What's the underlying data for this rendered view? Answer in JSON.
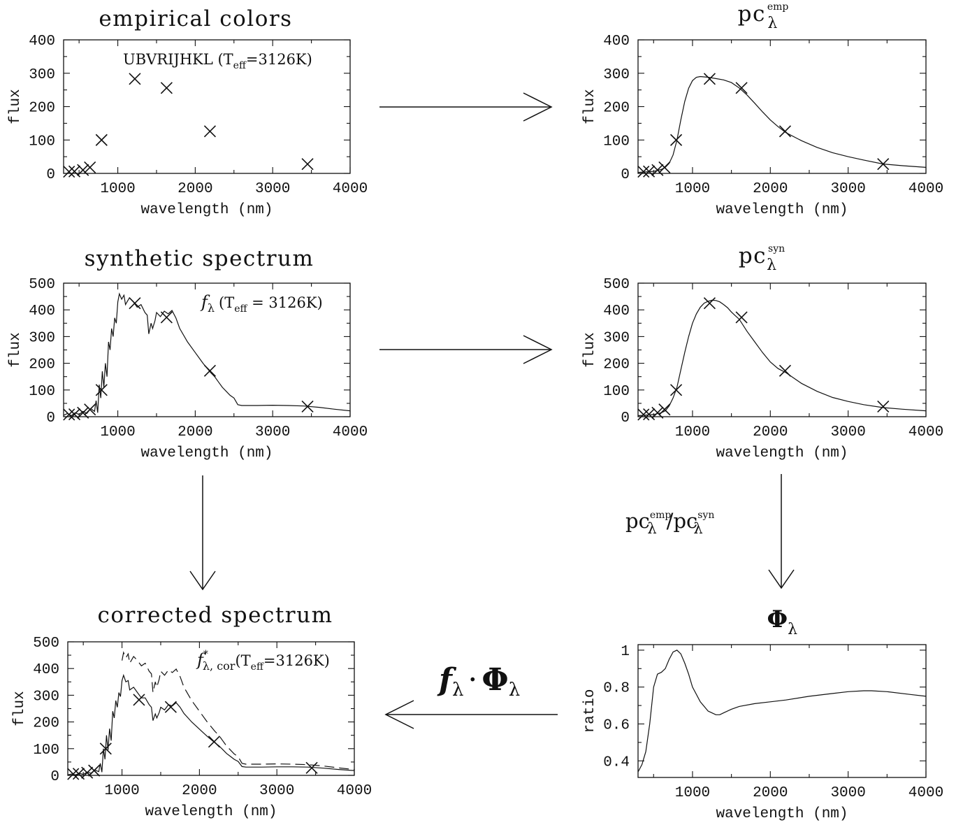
{
  "chart_data": [
    {
      "id": "empirical",
      "type": "scatter",
      "title": "empirical colors",
      "xlabel": "wavelength (nm)",
      "ylabel": "flux",
      "xlim": [
        300,
        4000
      ],
      "ylim": [
        0,
        400
      ],
      "xticks": [
        1000,
        2000,
        3000,
        4000
      ],
      "yticks": [
        0,
        100,
        200,
        300,
        400
      ],
      "annotation": {
        "pre": "UBVRIJHKL (T",
        "sub": "eff",
        "post": "=3126K)"
      },
      "markers": {
        "x": [
          370,
          440,
          550,
          640,
          790,
          1220,
          1630,
          2190,
          3450
        ],
        "y": [
          5,
          6,
          10,
          18,
          100,
          283,
          256,
          126,
          28
        ]
      }
    },
    {
      "id": "pc-emp",
      "type": "line",
      "title": {
        "base": "pc",
        "sup": "emp",
        "sub": "λ"
      },
      "xlabel": "wavelength (nm)",
      "ylabel": "flux",
      "xlim": [
        300,
        4000
      ],
      "ylim": [
        0,
        400
      ],
      "xticks": [
        1000,
        2000,
        3000,
        4000
      ],
      "yticks": [
        0,
        100,
        200,
        300,
        400
      ],
      "series": [
        {
          "x": [
            300,
            500,
            600,
            650,
            700,
            750,
            800,
            850,
            900,
            950,
            1000,
            1050,
            1100,
            1200,
            1300,
            1400,
            1500,
            1600,
            1700,
            1800,
            1900,
            2000,
            2100,
            2200,
            2400,
            2600,
            2800,
            3000,
            3200,
            3450,
            3700,
            4000
          ],
          "y": [
            3,
            6,
            12,
            18,
            30,
            55,
            100,
            160,
            215,
            255,
            278,
            288,
            290,
            288,
            284,
            280,
            272,
            256,
            235,
            210,
            184,
            160,
            140,
            122,
            98,
            78,
            62,
            50,
            40,
            28,
            23,
            18
          ]
        }
      ],
      "markers": {
        "x": [
          370,
          440,
          550,
          640,
          790,
          1220,
          1630,
          2190,
          3450
        ],
        "y": [
          5,
          6,
          10,
          18,
          100,
          283,
          256,
          126,
          28
        ]
      }
    },
    {
      "id": "synthetic",
      "type": "line",
      "title": "synthetic spectrum",
      "xlabel": "wavelength (nm)",
      "ylabel": "flux",
      "xlim": [
        300,
        4000
      ],
      "ylim": [
        0,
        500
      ],
      "xticks": [
        1000,
        2000,
        3000,
        4000
      ],
      "yticks": [
        0,
        100,
        200,
        300,
        400,
        500
      ],
      "annotation": {
        "f": "f",
        "lam": "λ",
        "pre": "(T",
        "sub": "eff",
        "post": " = 3126K)"
      },
      "series": [
        {
          "x": [
            300,
            350,
            400,
            450,
            500,
            550,
            600,
            650,
            700,
            720,
            740,
            760,
            780,
            800,
            820,
            840,
            860,
            880,
            900,
            920,
            940,
            960,
            980,
            1000,
            1020,
            1050,
            1080,
            1100,
            1150,
            1200,
            1250,
            1300,
            1350,
            1380,
            1400,
            1430,
            1450,
            1480,
            1500,
            1550,
            1600,
            1650,
            1700,
            1750,
            1800,
            1900,
            2000,
            2100,
            2200,
            2250,
            2300,
            2350,
            2400,
            2450,
            2500,
            2550,
            2600,
            2800,
            3000,
            3200,
            3400,
            3600,
            3800,
            4000
          ],
          "y": [
            5,
            12,
            4,
            15,
            8,
            20,
            12,
            30,
            20,
            60,
            15,
            120,
            70,
            170,
            110,
            200,
            150,
            280,
            250,
            330,
            300,
            370,
            350,
            430,
            460,
            440,
            455,
            420,
            445,
            430,
            410,
            420,
            390,
            380,
            310,
            350,
            330,
            360,
            390,
            375,
            395,
            385,
            398,
            370,
            330,
            280,
            240,
            200,
            165,
            150,
            130,
            110,
            95,
            80,
            70,
            45,
            42,
            42,
            43,
            42,
            40,
            35,
            28,
            22
          ]
        }
      ],
      "markers": {
        "x": [
          370,
          440,
          550,
          640,
          790,
          1220,
          1630,
          2190,
          3450
        ],
        "y": [
          8,
          9,
          15,
          27,
          100,
          425,
          372,
          172,
          38
        ]
      }
    },
    {
      "id": "pc-syn",
      "type": "line",
      "title": {
        "base": "pc",
        "sup": "syn",
        "sub": "λ"
      },
      "xlabel": "wavelength (nm)",
      "ylabel": "flux",
      "xlim": [
        300,
        4000
      ],
      "ylim": [
        0,
        500
      ],
      "xticks": [
        1000,
        2000,
        3000,
        4000
      ],
      "yticks": [
        0,
        100,
        200,
        300,
        400,
        500
      ],
      "series": [
        {
          "x": [
            300,
            500,
            600,
            650,
            700,
            750,
            800,
            850,
            900,
            950,
            1000,
            1050,
            1100,
            1150,
            1200,
            1250,
            1300,
            1350,
            1400,
            1450,
            1500,
            1550,
            1600,
            1700,
            1800,
            1900,
            2000,
            2100,
            2200,
            2400,
            2600,
            2800,
            3000,
            3200,
            3450,
            3700,
            4000
          ],
          "y": [
            4,
            8,
            15,
            22,
            40,
            70,
            110,
            175,
            240,
            300,
            350,
            385,
            410,
            425,
            432,
            436,
            435,
            430,
            420,
            408,
            392,
            378,
            365,
            320,
            280,
            240,
            205,
            180,
            165,
            125,
            95,
            72,
            57,
            45,
            34,
            28,
            22
          ]
        }
      ],
      "markers": {
        "x": [
          370,
          440,
          550,
          640,
          790,
          1220,
          1630,
          2190,
          3450
        ],
        "y": [
          8,
          9,
          15,
          27,
          100,
          425,
          372,
          172,
          38
        ]
      }
    },
    {
      "id": "corrected",
      "type": "line",
      "title": "corrected spectrum",
      "xlabel": "wavelength (nm)",
      "ylabel": "flux",
      "xlim": [
        300,
        4000
      ],
      "ylim": [
        0,
        500
      ],
      "xticks": [
        1000,
        2000,
        3000,
        4000
      ],
      "yticks": [
        0,
        100,
        200,
        300,
        400,
        500
      ],
      "annotation": {
        "f": "f",
        "sup": "*",
        "lamsub": "λ, cor",
        "pre": "(T",
        "sub": "eff",
        "post": "=3126K)"
      },
      "series": [
        {
          "style": "solid",
          "x": [
            300,
            350,
            400,
            450,
            500,
            550,
            600,
            650,
            700,
            720,
            740,
            760,
            780,
            800,
            820,
            840,
            860,
            880,
            900,
            920,
            940,
            960,
            980,
            1000,
            1020,
            1050,
            1080,
            1100,
            1150,
            1200,
            1250,
            1300,
            1350,
            1380,
            1400,
            1430,
            1450,
            1480,
            1500,
            1550,
            1600,
            1650,
            1700,
            1750,
            1800,
            1900,
            2000,
            2100,
            2200,
            2250,
            2300,
            2350,
            2400,
            2450,
            2500,
            2550,
            2600,
            2800,
            3000,
            3200,
            3400,
            3600,
            3800,
            4000
          ],
          "y": [
            2,
            5,
            2,
            7,
            4,
            12,
            8,
            20,
            14,
            45,
            12,
            100,
            60,
            150,
            95,
            175,
            130,
            240,
            215,
            280,
            255,
            310,
            295,
            355,
            375,
            350,
            355,
            320,
            330,
            310,
            290,
            290,
            265,
            255,
            205,
            230,
            215,
            235,
            255,
            245,
            265,
            260,
            272,
            255,
            232,
            200,
            173,
            146,
            122,
            111,
            97,
            82,
            71,
            60,
            52,
            33,
            31,
            31,
            32,
            32,
            31,
            27,
            22,
            18
          ]
        },
        {
          "style": "dashed",
          "x": [
            1000,
            1020,
            1050,
            1080,
            1100,
            1150,
            1200,
            1250,
            1300,
            1350,
            1380,
            1400,
            1430,
            1450,
            1480,
            1500,
            1550,
            1600,
            1650,
            1700,
            1750,
            1800,
            1900,
            2000,
            2100,
            2200,
            2250,
            2300,
            2350,
            2400,
            2450,
            2500,
            2550,
            2600,
            2800,
            3000,
            3200,
            3400,
            3600,
            3800,
            4000
          ],
          "y": [
            430,
            460,
            440,
            455,
            420,
            445,
            430,
            410,
            420,
            390,
            380,
            310,
            350,
            330,
            360,
            390,
            375,
            395,
            385,
            398,
            370,
            330,
            280,
            240,
            200,
            165,
            150,
            130,
            110,
            95,
            80,
            70,
            45,
            42,
            42,
            43,
            42,
            40,
            35,
            28,
            22
          ]
        }
      ],
      "markers": {
        "x": [
          370,
          440,
          550,
          640,
          790,
          1220,
          1630,
          2190,
          3450
        ],
        "y": [
          5,
          6,
          10,
          18,
          100,
          283,
          256,
          126,
          28
        ]
      }
    },
    {
      "id": "phi",
      "type": "line",
      "title": {
        "base": "Φ",
        "sub": "λ"
      },
      "xlabel": "wavelength (nm)",
      "ylabel": "ratio",
      "xlim": [
        300,
        4000
      ],
      "ylim": [
        0.31,
        1.03
      ],
      "xticks": [
        1000,
        2000,
        3000,
        4000
      ],
      "yticks": [
        0.4,
        0.6,
        0.8,
        1
      ],
      "yticklabels": [
        "0.4",
        "0.6",
        "0.8",
        "1"
      ],
      "series": [
        {
          "x": [
            300,
            350,
            400,
            450,
            500,
            550,
            600,
            650,
            700,
            750,
            800,
            850,
            900,
            950,
            1000,
            1100,
            1200,
            1300,
            1350,
            1400,
            1500,
            1600,
            1800,
            2000,
            2200,
            2500,
            2800,
            3000,
            3200,
            3300,
            3500,
            3800,
            4000
          ],
          "y": [
            0.34,
            0.38,
            0.45,
            0.6,
            0.8,
            0.87,
            0.88,
            0.9,
            0.95,
            0.99,
            1.0,
            0.98,
            0.93,
            0.87,
            0.8,
            0.72,
            0.67,
            0.65,
            0.65,
            0.66,
            0.68,
            0.695,
            0.71,
            0.72,
            0.73,
            0.75,
            0.765,
            0.775,
            0.78,
            0.78,
            0.775,
            0.76,
            0.75
          ]
        }
      ]
    }
  ],
  "flow": {
    "ratio_label": {
      "a_base": "pc",
      "a_sup": "emp",
      "a_sub": "λ",
      "slash": "/",
      "b_base": "pc",
      "b_sup": "syn",
      "b_sub": "λ"
    },
    "product_label": {
      "f": "f",
      "f_sub": "λ",
      "dot": "·",
      "phi": "Φ",
      "phi_sub": "λ"
    }
  }
}
